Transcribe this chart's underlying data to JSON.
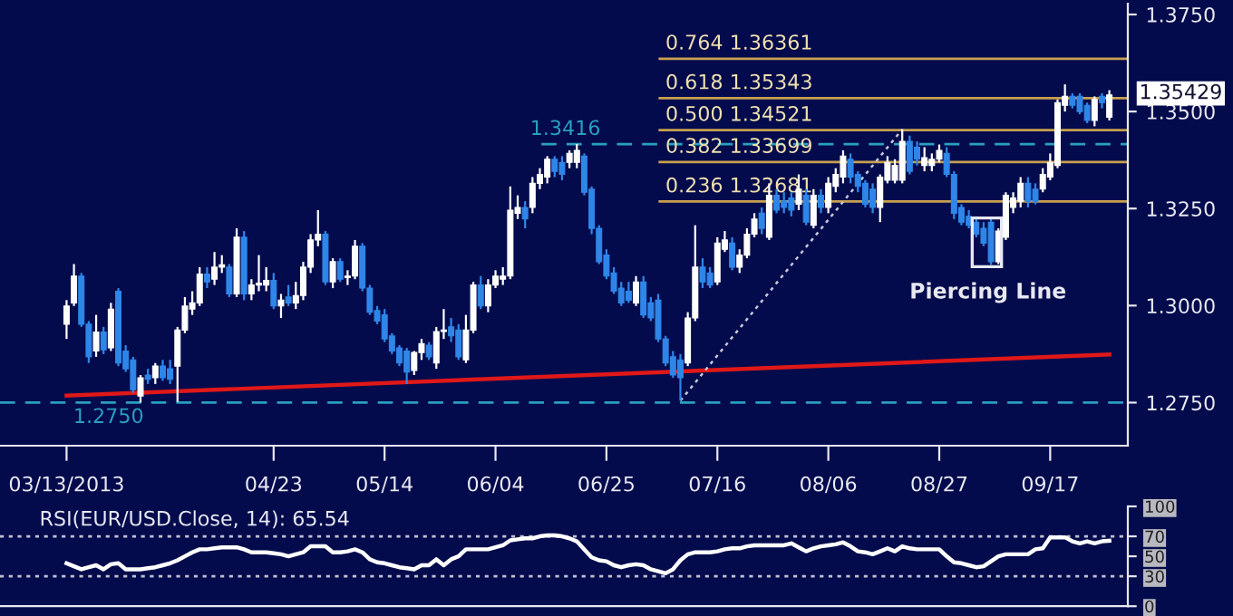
{
  "chart_data": [
    {
      "type": "candlestick",
      "categories": [
        "03/13/2013",
        null,
        null,
        null,
        null,
        null,
        null,
        null,
        null,
        null,
        null,
        null,
        null,
        null,
        null,
        null,
        null,
        null,
        null,
        null,
        null,
        null,
        null,
        null,
        null,
        null,
        null,
        null,
        "04/23",
        null,
        null,
        null,
        null,
        null,
        null,
        null,
        null,
        null,
        null,
        null,
        null,
        null,
        null,
        "05/14",
        null,
        null,
        null,
        null,
        null,
        null,
        null,
        null,
        null,
        null,
        null,
        null,
        null,
        null,
        "06/04",
        null,
        null,
        null,
        null,
        null,
        null,
        null,
        null,
        null,
        null,
        null,
        null,
        null,
        null,
        "06/25",
        null,
        null,
        null,
        null,
        null,
        null,
        null,
        null,
        null,
        null,
        null,
        null,
        null,
        null,
        "07/16",
        null,
        null,
        null,
        null,
        null,
        null,
        null,
        null,
        null,
        null,
        null,
        null,
        null,
        null,
        "08/06",
        null,
        null,
        null,
        null,
        null,
        null,
        null,
        null,
        null,
        null,
        null,
        null,
        null,
        null,
        "08/27",
        null,
        null,
        null,
        null,
        null,
        null,
        null,
        null,
        null,
        null,
        null,
        null,
        null,
        null,
        "09/17",
        null,
        null,
        null,
        null,
        null,
        null,
        null,
        null
      ],
      "ohlc": [
        [
          1.2952,
          1.3014,
          1.2914,
          1.2999
        ],
        [
          1.3007,
          1.3107,
          1.2999,
          1.3076
        ],
        [
          1.3076,
          1.3084,
          1.2945,
          1.2952
        ],
        [
          1.2952,
          1.296,
          1.2852,
          1.2868
        ],
        [
          1.2883,
          1.2976,
          1.2868,
          1.2932
        ],
        [
          1.2932,
          1.2945,
          1.2875,
          1.2886
        ],
        [
          1.2891,
          1.3007,
          1.2883,
          1.2991
        ],
        [
          1.3037,
          1.3045,
          1.2844,
          1.2852
        ],
        [
          1.2883,
          1.2898,
          1.2829,
          1.2837
        ],
        [
          1.286,
          1.2868,
          1.2775,
          1.2783
        ],
        [
          1.2767,
          1.2821,
          1.275,
          1.2814
        ],
        [
          1.2821,
          1.2837,
          1.2798,
          1.281
        ],
        [
          1.2814,
          1.2852,
          1.2798,
          1.2844
        ],
        [
          1.2844,
          1.286,
          1.2806,
          1.2814
        ],
        [
          1.2837,
          1.286,
          1.2798,
          1.281
        ],
        [
          1.2844,
          1.2945,
          1.2752,
          1.2937
        ],
        [
          1.2937,
          1.3022,
          1.2929,
          1.2999
        ],
        [
          1.2991,
          1.3037,
          1.2976,
          1.3007
        ],
        [
          1.3007,
          1.3099,
          1.2999,
          1.3081
        ],
        [
          1.3081,
          1.3099,
          1.3045,
          1.3061
        ],
        [
          1.3068,
          1.3138,
          1.3053,
          1.3099
        ],
        [
          1.3099,
          1.313,
          1.3084,
          1.3105
        ],
        [
          1.3099,
          1.3107,
          1.3022,
          1.303
        ],
        [
          1.303,
          1.3199,
          1.3022,
          1.3176
        ],
        [
          1.3176,
          1.3192,
          1.3014,
          1.303
        ],
        [
          1.303,
          1.3068,
          1.3014,
          1.3053
        ],
        [
          1.3053,
          1.313,
          1.3037,
          1.3058
        ],
        [
          1.3053,
          1.3099,
          1.3037,
          1.3065
        ],
        [
          1.3065,
          1.3084,
          1.2991,
          1.2999
        ],
        [
          1.2999,
          1.303,
          1.2968,
          1.3014
        ],
        [
          1.3022,
          1.3053,
          1.2999,
          1.3007
        ],
        [
          1.3007,
          1.3061,
          1.2991,
          1.3026
        ],
        [
          1.3026,
          1.3113,
          1.3014,
          1.3099
        ],
        [
          1.3099,
          1.3184,
          1.3084,
          1.3169
        ],
        [
          1.3169,
          1.3246,
          1.3153,
          1.3184
        ],
        [
          1.3184,
          1.3192,
          1.3053,
          1.3061
        ],
        [
          1.3061,
          1.3122,
          1.3045,
          1.3113
        ],
        [
          1.3113,
          1.3122,
          1.3061,
          1.3068
        ],
        [
          1.3072,
          1.3091,
          1.3053,
          1.3076
        ],
        [
          1.3076,
          1.3169,
          1.3068,
          1.3153
        ],
        [
          1.3153,
          1.3161,
          1.3037,
          1.3045
        ],
        [
          1.3045,
          1.3053,
          1.2976,
          1.2983
        ],
        [
          1.2987,
          1.2999,
          1.2952,
          1.296
        ],
        [
          1.2976,
          1.2991,
          1.2906,
          1.2914
        ],
        [
          1.2922,
          1.2929,
          1.2875,
          1.2883
        ],
        [
          1.2891,
          1.2898,
          1.2844,
          1.2852
        ],
        [
          1.2883,
          1.2891,
          1.2798,
          1.2829
        ],
        [
          1.2833,
          1.2883,
          1.2821,
          1.2879
        ],
        [
          1.2879,
          1.2914,
          1.286,
          1.2902
        ],
        [
          1.2898,
          1.2906,
          1.286,
          1.2868
        ],
        [
          1.2852,
          1.2945,
          1.2837,
          1.2933
        ],
        [
          1.2933,
          1.2991,
          1.2914,
          1.2937
        ],
        [
          1.2945,
          1.2968,
          1.2906,
          1.2922
        ],
        [
          1.2937,
          1.2952,
          1.286,
          1.2868
        ],
        [
          1.286,
          1.2976,
          1.2852,
          1.2937
        ],
        [
          1.2937,
          1.3061,
          1.2929,
          1.3053
        ],
        [
          1.3053,
          1.3076,
          1.2991,
          1.2999
        ],
        [
          1.2999,
          1.3068,
          1.2983,
          1.3053
        ],
        [
          1.3053,
          1.3091,
          1.3045,
          1.3076
        ],
        [
          1.3068,
          1.3099,
          1.3053,
          1.3076
        ],
        [
          1.3076,
          1.3307,
          1.3068,
          1.3246
        ],
        [
          1.3238,
          1.3284,
          1.3223,
          1.3253
        ],
        [
          1.3253,
          1.3269,
          1.3199,
          1.3223
        ],
        [
          1.3253,
          1.3331,
          1.3238,
          1.3315
        ],
        [
          1.3315,
          1.3354,
          1.33,
          1.3338
        ],
        [
          1.3331,
          1.3385,
          1.3315,
          1.3377
        ],
        [
          1.3377,
          1.3385,
          1.3331,
          1.3346
        ],
        [
          1.3369,
          1.3385,
          1.3323,
          1.3338
        ],
        [
          1.3369,
          1.34,
          1.3354,
          1.3392
        ],
        [
          1.3369,
          1.3416,
          1.3354,
          1.34
        ],
        [
          1.3385,
          1.3392,
          1.3284,
          1.3292
        ],
        [
          1.33,
          1.3307,
          1.3184,
          1.3199
        ],
        [
          1.3199,
          1.3207,
          1.3107,
          1.3113
        ],
        [
          1.313,
          1.3145,
          1.3068,
          1.3076
        ],
        [
          1.3084,
          1.3099,
          1.303,
          1.3037
        ],
        [
          1.3045,
          1.3061,
          1.2999,
          1.3007
        ],
        [
          1.3037,
          1.3061,
          1.3007,
          1.3014
        ],
        [
          1.3007,
          1.3076,
          1.2999,
          1.3061
        ],
        [
          1.3061,
          1.3076,
          1.2968,
          1.2976
        ],
        [
          1.3007,
          1.3022,
          1.296,
          1.2968
        ],
        [
          1.3014,
          1.303,
          1.2906,
          1.2914
        ],
        [
          1.2914,
          1.2922,
          1.2844,
          1.2852
        ],
        [
          1.2868,
          1.2883,
          1.2814,
          1.2821
        ],
        [
          1.286,
          1.2875,
          1.2755,
          1.2814
        ],
        [
          1.2852,
          1.2983,
          1.2844,
          1.2968
        ],
        [
          1.2968,
          1.3207,
          1.296,
          1.3099
        ],
        [
          1.3099,
          1.3122,
          1.3045,
          1.3061
        ],
        [
          1.3084,
          1.3099,
          1.3045,
          1.3053
        ],
        [
          1.3061,
          1.3176,
          1.3053,
          1.3161
        ],
        [
          1.3145,
          1.3192,
          1.3138,
          1.3169
        ],
        [
          1.3161,
          1.3176,
          1.3091,
          1.3099
        ],
        [
          1.3099,
          1.3145,
          1.3084,
          1.313
        ],
        [
          1.313,
          1.3199,
          1.3122,
          1.3184
        ],
        [
          1.3184,
          1.3238,
          1.3176,
          1.3223
        ],
        [
          1.3238,
          1.3253,
          1.3184,
          1.3199
        ],
        [
          1.3176,
          1.3315,
          1.3169,
          1.3284
        ],
        [
          1.3284,
          1.33,
          1.3238,
          1.3246
        ],
        [
          1.3269,
          1.3292,
          1.3238,
          1.3253
        ],
        [
          1.3277,
          1.3292,
          1.323,
          1.3246
        ],
        [
          1.3261,
          1.3338,
          1.3246,
          1.33
        ],
        [
          1.3284,
          1.33,
          1.3207,
          1.3215
        ],
        [
          1.3207,
          1.33,
          1.3199,
          1.3284
        ],
        [
          1.3284,
          1.33,
          1.3238,
          1.3253
        ],
        [
          1.3253,
          1.3331,
          1.3238,
          1.3315
        ],
        [
          1.3307,
          1.3354,
          1.3292,
          1.3338
        ],
        [
          1.3331,
          1.34,
          1.3315,
          1.3385
        ],
        [
          1.3377,
          1.3392,
          1.3315,
          1.3331
        ],
        [
          1.3338,
          1.3346,
          1.3292,
          1.3307
        ],
        [
          1.3315,
          1.3323,
          1.3253,
          1.3261
        ],
        [
          1.33,
          1.3315,
          1.3238,
          1.3253
        ],
        [
          1.3253,
          1.3338,
          1.3215,
          1.3331
        ],
        [
          1.3323,
          1.3385,
          1.3315,
          1.3369
        ],
        [
          1.3323,
          1.3377,
          1.3315,
          1.3361
        ],
        [
          1.3323,
          1.3454,
          1.3315,
          1.3423
        ],
        [
          1.3423,
          1.3438,
          1.3338,
          1.3346
        ],
        [
          1.3408,
          1.3423,
          1.3361,
          1.3377
        ],
        [
          1.3361,
          1.3408,
          1.3346,
          1.3381
        ],
        [
          1.3361,
          1.3392,
          1.3346,
          1.3377
        ],
        [
          1.3377,
          1.3415,
          1.3369,
          1.34
        ],
        [
          1.3392,
          1.3408,
          1.3331,
          1.3338
        ],
        [
          1.3338,
          1.3346,
          1.3223,
          1.3238
        ],
        [
          1.3253,
          1.3261,
          1.3207,
          1.3215
        ],
        [
          1.323,
          1.3246,
          1.3199,
          1.3207
        ],
        [
          1.3215,
          1.323,
          1.3176,
          1.3184
        ],
        [
          1.3199,
          1.3215,
          1.3153,
          1.3161
        ],
        [
          1.3215,
          1.3223,
          1.3105,
          1.3113
        ],
        [
          1.3113,
          1.3199,
          1.3107,
          1.3192
        ],
        [
          1.3176,
          1.3292,
          1.3169,
          1.3284
        ],
        [
          1.3253,
          1.3292,
          1.3238,
          1.3277
        ],
        [
          1.3269,
          1.3331,
          1.3253,
          1.3315
        ],
        [
          1.3315,
          1.3331,
          1.3253,
          1.3269
        ],
        [
          1.33,
          1.3315,
          1.3261,
          1.3269
        ],
        [
          1.33,
          1.3354,
          1.3292,
          1.3338
        ],
        [
          1.3331,
          1.3392,
          1.3323,
          1.3369
        ],
        [
          1.3361,
          1.3531,
          1.3354,
          1.3523
        ],
        [
          1.3516,
          1.357,
          1.35,
          1.3539
        ],
        [
          1.3539,
          1.3547,
          1.3508,
          1.3516
        ],
        [
          1.3539,
          1.3547,
          1.3493,
          1.35
        ],
        [
          1.3516,
          1.3523,
          1.347,
          1.3477
        ],
        [
          1.3477,
          1.3539,
          1.3462,
          1.3531
        ],
        [
          1.3539,
          1.3547,
          1.3508,
          1.3523
        ],
        [
          1.3485,
          1.3555,
          1.3477,
          1.35429
        ]
      ],
      "colors": [
        "#ffffff",
        "#ffffff",
        "#2f86e8",
        "#2f86e8",
        "#ffffff",
        "#2f86e8",
        "#ffffff",
        "#2f86e8",
        "#2f86e8",
        "#2f86e8",
        "#ffffff",
        "#2f86e8",
        "#ffffff",
        "#2f86e8",
        "#2f86e8",
        "#ffffff",
        "#ffffff",
        "#ffffff",
        "#ffffff",
        "#2f86e8",
        "#ffffff",
        "#ffffff",
        "#2f86e8",
        "#ffffff",
        "#2f86e8",
        "#ffffff",
        "#ffffff",
        "#ffffff",
        "#2f86e8",
        "#ffffff",
        "#2f86e8",
        "#ffffff",
        "#ffffff",
        "#ffffff",
        "#ffffff",
        "#2f86e8",
        "#ffffff",
        "#2f86e8",
        "#ffffff",
        "#ffffff",
        "#2f86e8",
        "#2f86e8",
        "#2f86e8",
        "#2f86e8",
        "#2f86e8",
        "#2f86e8",
        "#2f86e8",
        "#ffffff",
        "#ffffff",
        "#2f86e8",
        "#ffffff",
        "#ffffff",
        "#2f86e8",
        "#2f86e8",
        "#ffffff",
        "#ffffff",
        "#2f86e8",
        "#ffffff",
        "#ffffff",
        "#ffffff",
        "#ffffff",
        "#ffffff",
        "#2f86e8",
        "#ffffff",
        "#ffffff",
        "#ffffff",
        "#2f86e8",
        "#2f86e8",
        "#ffffff",
        "#ffffff",
        "#2f86e8",
        "#2f86e8",
        "#2f86e8",
        "#2f86e8",
        "#2f86e8",
        "#2f86e8",
        "#2f86e8",
        "#ffffff",
        "#2f86e8",
        "#2f86e8",
        "#2f86e8",
        "#2f86e8",
        "#2f86e8",
        "#2f86e8",
        "#ffffff",
        "#ffffff",
        "#2f86e8",
        "#2f86e8",
        "#ffffff",
        "#ffffff",
        "#2f86e8",
        "#ffffff",
        "#ffffff",
        "#ffffff",
        "#2f86e8",
        "#ffffff",
        "#2f86e8",
        "#2f86e8",
        "#2f86e8",
        "#ffffff",
        "#2f86e8",
        "#ffffff",
        "#2f86e8",
        "#ffffff",
        "#ffffff",
        "#ffffff",
        "#2f86e8",
        "#2f86e8",
        "#2f86e8",
        "#2f86e8",
        "#ffffff",
        "#ffffff",
        "#ffffff",
        "#ffffff",
        "#2f86e8",
        "#2f86e8",
        "#ffffff",
        "#ffffff",
        "#ffffff",
        "#2f86e8",
        "#2f86e8",
        "#2f86e8",
        "#2f86e8",
        "#2f86e8",
        "#2f86e8",
        "#2f86e8",
        "#ffffff",
        "#ffffff",
        "#ffffff",
        "#ffffff",
        "#2f86e8",
        "#2f86e8",
        "#ffffff",
        "#ffffff",
        "#ffffff",
        "#ffffff",
        "#2f86e8",
        "#2f86e8",
        "#2f86e8",
        "#ffffff",
        "#2f86e8",
        "#ffffff"
      ],
      "series": [
        {
          "type": "line",
          "color": "#e01818",
          "line_style": "solid",
          "values": [
            1.2768,
            null,
            null,
            null,
            null,
            null,
            null,
            null,
            null,
            null,
            null,
            null,
            null,
            null,
            null,
            null,
            null,
            null,
            null,
            null,
            null,
            null,
            null,
            null,
            null,
            null,
            null,
            null,
            null,
            null,
            null,
            null,
            null,
            null,
            null,
            null,
            null,
            null,
            null,
            null,
            null,
            null,
            null,
            null,
            null,
            null,
            null,
            null,
            null,
            null,
            null,
            null,
            null,
            null,
            null,
            null,
            null,
            null,
            null,
            null,
            null,
            null,
            null,
            null,
            null,
            null,
            null,
            null,
            null,
            null,
            null,
            null,
            null,
            null,
            null,
            null,
            null,
            null,
            null,
            null,
            null,
            null,
            null,
            null,
            null,
            null,
            null,
            null,
            null,
            null,
            null,
            null,
            null,
            null,
            null,
            null,
            null,
            null,
            null,
            null,
            null,
            null,
            null,
            null,
            null,
            null,
            null,
            null,
            null,
            null,
            null,
            null,
            null,
            null,
            null,
            null,
            null,
            null,
            null,
            null,
            null,
            null,
            null,
            null,
            null,
            null,
            null,
            null,
            null,
            null,
            null,
            null,
            null,
            null,
            null,
            null,
            null,
            null,
            null,
            null,
            null,
            1.2874
          ]
        },
        {
          "type": "line",
          "color": "#c8c8d8",
          "line_style": "dotted",
          "values": [
            null,
            null,
            null,
            null,
            null,
            null,
            null,
            null,
            null,
            null,
            null,
            null,
            null,
            null,
            null,
            null,
            null,
            null,
            null,
            null,
            null,
            null,
            null,
            null,
            null,
            null,
            null,
            null,
            null,
            null,
            null,
            null,
            null,
            null,
            null,
            null,
            null,
            null,
            null,
            null,
            null,
            null,
            null,
            null,
            null,
            null,
            null,
            null,
            null,
            null,
            null,
            null,
            null,
            null,
            null,
            null,
            null,
            null,
            null,
            null,
            null,
            null,
            null,
            null,
            null,
            null,
            null,
            null,
            null,
            null,
            null,
            null,
            null,
            null,
            null,
            null,
            null,
            null,
            null,
            null,
            null,
            null,
            null,
            1.2755,
            null,
            null,
            null,
            null,
            null,
            null,
            null,
            null,
            null,
            null,
            null,
            null,
            null,
            null,
            null,
            null,
            null,
            null,
            null,
            null,
            null,
            null,
            null,
            null,
            null,
            null,
            null,
            null,
            null,
            1.3454,
            null,
            null,
            null,
            null,
            null,
            null,
            null,
            null,
            null,
            null,
            null,
            null,
            null,
            null,
            null,
            null,
            null,
            null,
            null,
            null,
            null,
            null,
            null,
            null,
            null,
            null,
            null,
            null
          ]
        }
      ],
      "ylim": [
        1.2639,
        1.3778
      ],
      "yticks": [
        {
          "value": 1.275,
          "label": "1.2750"
        },
        {
          "value": 1.3,
          "label": "1.3000"
        },
        {
          "value": 1.325,
          "label": "1.3250"
        },
        {
          "value": 1.35,
          "label": "1.3500"
        },
        {
          "value": 1.375,
          "label": "1.3750"
        }
      ],
      "ref_lines": [
        {
          "axis": "y",
          "value": 1.36361,
          "label": "0.764 1.36361",
          "color": "#c8a050"
        },
        {
          "axis": "y",
          "value": 1.35343,
          "label": "0.618 1.35343",
          "color": "#c8a050"
        },
        {
          "axis": "y",
          "value": 1.34521,
          "label": "0.500 1.34521",
          "color": "#c8a050"
        },
        {
          "axis": "y",
          "value": 1.33699,
          "label": "0.382 1.33699",
          "color": "#c8a050"
        },
        {
          "axis": "y",
          "value": 1.32681,
          "label": "0.236 1.32681",
          "color": "#c8a050"
        },
        {
          "axis": "y",
          "value": 1.3416,
          "label": "1.3416",
          "color": "#2a9fc0",
          "line_style": "dashed"
        },
        {
          "axis": "y",
          "value": 1.275,
          "label": "1.2750",
          "color": "#2a9fc0",
          "line_style": "dashed"
        }
      ],
      "annotations": [
        "Piercing Line",
        "1.35429"
      ]
    },
    {
      "type": "line",
      "title": "RSI(EUR/USD.Close, 14): 65.54",
      "categories": [
        null,
        null,
        null,
        null,
        null,
        null,
        null,
        null,
        null,
        null,
        null,
        null,
        null,
        null,
        null,
        null,
        null,
        null,
        null,
        null,
        null,
        null,
        null,
        null,
        null,
        null,
        null,
        null,
        null,
        null,
        null,
        null,
        null,
        null,
        null,
        null,
        null,
        null,
        null,
        null,
        null,
        null,
        null,
        null,
        null,
        null,
        null,
        null,
        null,
        null,
        null,
        null,
        null,
        null,
        null,
        null,
        null,
        null,
        null,
        null,
        null,
        null,
        null,
        null,
        null,
        null,
        null,
        null,
        null,
        null,
        null,
        null,
        null,
        null,
        null,
        null,
        null,
        null,
        null,
        null,
        null,
        null,
        null,
        null,
        null,
        null,
        null,
        null,
        null,
        null,
        null,
        null,
        null,
        null,
        null,
        null,
        null,
        null,
        null,
        null,
        null,
        null,
        null,
        null,
        null,
        null,
        null,
        null,
        null,
        null,
        null,
        null,
        null,
        null,
        null,
        null,
        null,
        null,
        null,
        null,
        null,
        null,
        null,
        null,
        null,
        null,
        null,
        null,
        null,
        null,
        null,
        null,
        null,
        null,
        null,
        null,
        null,
        null,
        null,
        null,
        null,
        null
      ],
      "series": [
        {
          "color": "#ffffff",
          "values": [
            43,
            40,
            37,
            39,
            41,
            37,
            42,
            43,
            37,
            37,
            37,
            38,
            39,
            41,
            43,
            46,
            50,
            54,
            57,
            57,
            58,
            59,
            59,
            59,
            57,
            54,
            54,
            54,
            53,
            52,
            50,
            52,
            54,
            60,
            60,
            60,
            54,
            54,
            55,
            57,
            54,
            47,
            44,
            43,
            41,
            39,
            38,
            37,
            41,
            41,
            47,
            41,
            47,
            50,
            57,
            57,
            57,
            57,
            59,
            61,
            66,
            67,
            68,
            68,
            70,
            71,
            71,
            70,
            68,
            65,
            57,
            49,
            46,
            45,
            41,
            39,
            41,
            42,
            41,
            37,
            35,
            33,
            37,
            46,
            52,
            54,
            54,
            54,
            55,
            57,
            58,
            58,
            60,
            61,
            61,
            61,
            61,
            61,
            63,
            59,
            55,
            58,
            60,
            61,
            62,
            64,
            60,
            55,
            54,
            52,
            55,
            58,
            55,
            60,
            58,
            57,
            57,
            57,
            57,
            50,
            44,
            43,
            41,
            39,
            40,
            45,
            50,
            52,
            52,
            52,
            52,
            57,
            58,
            69,
            69,
            69,
            65,
            63,
            65,
            63,
            65,
            65.54
          ]
        }
      ],
      "ylim": [
        0,
        100
      ],
      "yticks": [
        0,
        30,
        50,
        70,
        100
      ],
      "ref_lines": [
        {
          "axis": "y",
          "value": 30,
          "color": "#c0c0d0",
          "line_style": "dotted"
        },
        {
          "axis": "y",
          "value": 70,
          "color": "#c0c0d0",
          "line_style": "dotted"
        }
      ],
      "tick_labels": "y"
    }
  ]
}
